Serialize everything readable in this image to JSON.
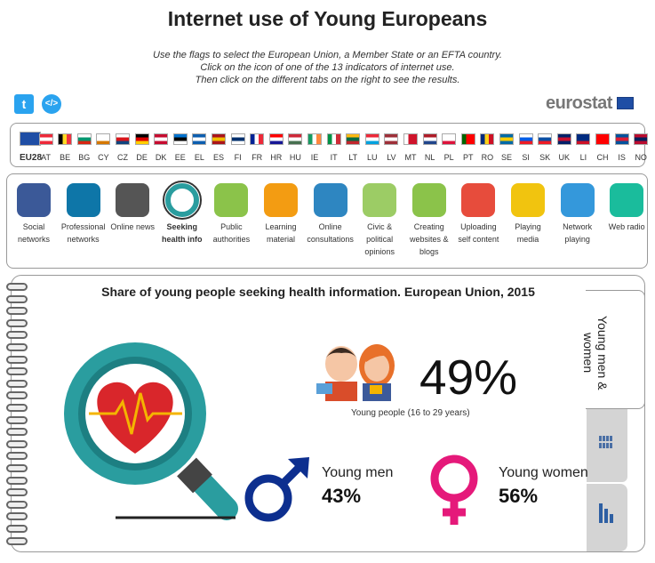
{
  "title": "Internet use of Young Europeans",
  "instructions": [
    "Use the flags to select the European Union, a Member State or an EFTA country.",
    "Click on the icon of one of the 13 indicators of internet use.",
    "Then click on the different tabs on the right to see the results."
  ],
  "logo": "eurostat",
  "twitter_glyph": "t",
  "embed_glyph": "</>",
  "countries": [
    {
      "code": "EU28",
      "colors": [
        "#1f4ea5",
        "#1f4ea5",
        "#1f4ea5"
      ]
    },
    {
      "code": "AT",
      "colors": [
        "#ed2939",
        "#ffffff",
        "#ed2939"
      ],
      "dir": "h"
    },
    {
      "code": "BE",
      "colors": [
        "#000000",
        "#fdda24",
        "#ef3340"
      ],
      "dir": "v"
    },
    {
      "code": "BG",
      "colors": [
        "#ffffff",
        "#00966e",
        "#d62612"
      ],
      "dir": "h"
    },
    {
      "code": "CY",
      "colors": [
        "#ffffff",
        "#ffffff",
        "#d57800"
      ],
      "dir": "h"
    },
    {
      "code": "CZ",
      "colors": [
        "#ffffff",
        "#d7141a",
        "#11457e"
      ],
      "dir": "h"
    },
    {
      "code": "DE",
      "colors": [
        "#000000",
        "#dd0000",
        "#ffce00"
      ],
      "dir": "h"
    },
    {
      "code": "DK",
      "colors": [
        "#c60c30",
        "#ffffff",
        "#c60c30"
      ],
      "dir": "h"
    },
    {
      "code": "EE",
      "colors": [
        "#0072ce",
        "#000000",
        "#ffffff"
      ],
      "dir": "h"
    },
    {
      "code": "EL",
      "colors": [
        "#0d5eaf",
        "#ffffff",
        "#0d5eaf"
      ],
      "dir": "h"
    },
    {
      "code": "ES",
      "colors": [
        "#aa151b",
        "#f1bf00",
        "#aa151b"
      ],
      "dir": "h"
    },
    {
      "code": "FI",
      "colors": [
        "#ffffff",
        "#002f6c",
        "#ffffff"
      ],
      "dir": "h"
    },
    {
      "code": "FR",
      "colors": [
        "#002395",
        "#ffffff",
        "#ed2939"
      ],
      "dir": "v"
    },
    {
      "code": "HR",
      "colors": [
        "#ff0000",
        "#ffffff",
        "#171796"
      ],
      "dir": "h"
    },
    {
      "code": "HU",
      "colors": [
        "#ce2939",
        "#ffffff",
        "#477050"
      ],
      "dir": "h"
    },
    {
      "code": "IE",
      "colors": [
        "#169b62",
        "#ffffff",
        "#ff883e"
      ],
      "dir": "v"
    },
    {
      "code": "IT",
      "colors": [
        "#009246",
        "#ffffff",
        "#ce2b37"
      ],
      "dir": "v"
    },
    {
      "code": "LT",
      "colors": [
        "#fdb913",
        "#006a44",
        "#c1272d"
      ],
      "dir": "h"
    },
    {
      "code": "LU",
      "colors": [
        "#ed2939",
        "#ffffff",
        "#00a1de"
      ],
      "dir": "h"
    },
    {
      "code": "LV",
      "colors": [
        "#9e3039",
        "#ffffff",
        "#9e3039"
      ],
      "dir": "h"
    },
    {
      "code": "MT",
      "colors": [
        "#ffffff",
        "#cf142b",
        "#cf142b"
      ],
      "dir": "v"
    },
    {
      "code": "NL",
      "colors": [
        "#ae1c28",
        "#ffffff",
        "#21468b"
      ],
      "dir": "h"
    },
    {
      "code": "PL",
      "colors": [
        "#ffffff",
        "#ffffff",
        "#dc143c"
      ],
      "dir": "h"
    },
    {
      "code": "PT",
      "colors": [
        "#006600",
        "#ff0000",
        "#ff0000"
      ],
      "dir": "v"
    },
    {
      "code": "RO",
      "colors": [
        "#002b7f",
        "#fcd116",
        "#ce1126"
      ],
      "dir": "v"
    },
    {
      "code": "SE",
      "colors": [
        "#006aa7",
        "#fecc00",
        "#006aa7"
      ],
      "dir": "h"
    },
    {
      "code": "SI",
      "colors": [
        "#ffffff",
        "#005ce5",
        "#ed1c24"
      ],
      "dir": "h"
    },
    {
      "code": "SK",
      "colors": [
        "#ffffff",
        "#0b4ea2",
        "#ee1c25"
      ],
      "dir": "h"
    },
    {
      "code": "UK",
      "colors": [
        "#012169",
        "#c8102e",
        "#012169"
      ],
      "dir": "h"
    },
    {
      "code": "LI",
      "colors": [
        "#002b7f",
        "#002b7f",
        "#ce1126"
      ],
      "dir": "h"
    },
    {
      "code": "CH",
      "colors": [
        "#ff0000",
        "#ff0000",
        "#ff0000"
      ],
      "dir": "h"
    },
    {
      "code": "IS",
      "colors": [
        "#02529c",
        "#dc1e35",
        "#02529c"
      ],
      "dir": "h"
    },
    {
      "code": "NO",
      "colors": [
        "#ba0c2f",
        "#00205b",
        "#ba0c2f"
      ],
      "dir": "h"
    }
  ],
  "selected_country": "EU28",
  "indicators": [
    {
      "id": "social",
      "label": [
        "Social",
        "networks"
      ],
      "icon": "megaphone-facebook-icon",
      "color": "#3b5998"
    },
    {
      "id": "professional",
      "label": [
        "Professional",
        "networks"
      ],
      "icon": "megaphone-linkedin-icon",
      "color": "#0e76a8"
    },
    {
      "id": "news",
      "label": [
        "Online news"
      ],
      "icon": "newspaper-icon",
      "color": "#555555"
    },
    {
      "id": "health",
      "label": [
        "Seeking",
        "health info"
      ],
      "icon": "magnifier-heart-icon",
      "color": "#2a9d9f"
    },
    {
      "id": "authorities",
      "label": [
        "Public",
        "authorities"
      ],
      "icon": "speech-bubble-icon",
      "color": "#8bc34a"
    },
    {
      "id": "learning",
      "label": [
        "Learning",
        "material"
      ],
      "icon": "graduation-cap-icon",
      "color": "#f39c12"
    },
    {
      "id": "consultations",
      "label": [
        "Online",
        "consultations"
      ],
      "icon": "pen-paper-icon",
      "color": "#2e86c1"
    },
    {
      "id": "civic",
      "label": [
        "Civic &",
        "political",
        "opinions"
      ],
      "icon": "bubbles-icon",
      "color": "#9ccc65"
    },
    {
      "id": "websites",
      "label": [
        "Creating",
        "websites &",
        "blogs"
      ],
      "icon": "www-icon",
      "color": "#8bc34a"
    },
    {
      "id": "uploading",
      "label": [
        "Uploading",
        "self content"
      ],
      "icon": "cloud-upload-icon",
      "color": "#e74c3c"
    },
    {
      "id": "media",
      "label": [
        "Playing",
        "media"
      ],
      "icon": "media-box-icon",
      "color": "#f1c40f"
    },
    {
      "id": "network_playing",
      "label": [
        "Network",
        "playing"
      ],
      "icon": "gamepad-icon",
      "color": "#3498db"
    },
    {
      "id": "radio",
      "label": [
        "Web radio"
      ],
      "icon": "radio-icon",
      "color": "#1abc9c"
    }
  ],
  "selected_indicator": "health",
  "result": {
    "title": "Share of young people seeking health information. European Union, 2015",
    "total_value": "49%",
    "total_label": "Young people (16 to 29 years)",
    "men_label": "Young men",
    "men_value": "43%",
    "women_label": "Young women",
    "women_value": "56%"
  },
  "tabs": {
    "active": "Young men & women",
    "others": [
      "age-groups-icon",
      "bar-chart-icon"
    ]
  },
  "colors": {
    "male": "#0d2f8f",
    "female": "#e5197a",
    "teal": "#2a9d9f",
    "heart": "#d9262b"
  }
}
